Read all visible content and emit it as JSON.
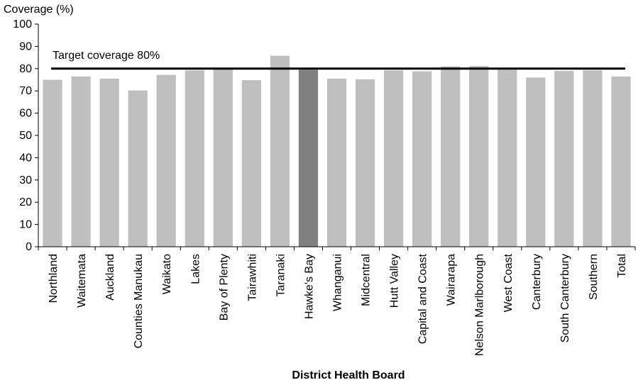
{
  "chart_data": {
    "type": "bar",
    "ylabel": "Coverage  (%)",
    "xlabel": "District Health Board",
    "ylim": [
      0,
      100
    ],
    "yticks": [
      0,
      10,
      20,
      30,
      40,
      50,
      60,
      70,
      80,
      90,
      100
    ],
    "grid": false,
    "categories": [
      "Northland",
      "Waitemata",
      "Auckland",
      "Counties Manukau",
      "Waikato",
      "Lakes",
      "Bay of Plenty",
      "Tairawhiti",
      "Taranaki",
      "Hawke's Bay",
      "Whanganui",
      "Midcentral",
      "Hutt Valley",
      "Capital and Coast",
      "Wairarapa",
      "Nelson Marlborough",
      "West Coast",
      "Canterbury",
      "South Canterbury",
      "Southern",
      "Total"
    ],
    "values": [
      75,
      76.5,
      75.5,
      70.2,
      77.2,
      79.2,
      79.8,
      74.8,
      85.8,
      79.5,
      75.5,
      75.2,
      79.2,
      78.8,
      81,
      81.2,
      79.5,
      76,
      79,
      79.2,
      76.5
    ],
    "highlight": "Hawke's Bay",
    "colors": {
      "bar": "#bfbfbf",
      "highlight": "#808080",
      "target": "#000000"
    },
    "target": {
      "value": 80,
      "label": "Target coverage 80%"
    }
  }
}
